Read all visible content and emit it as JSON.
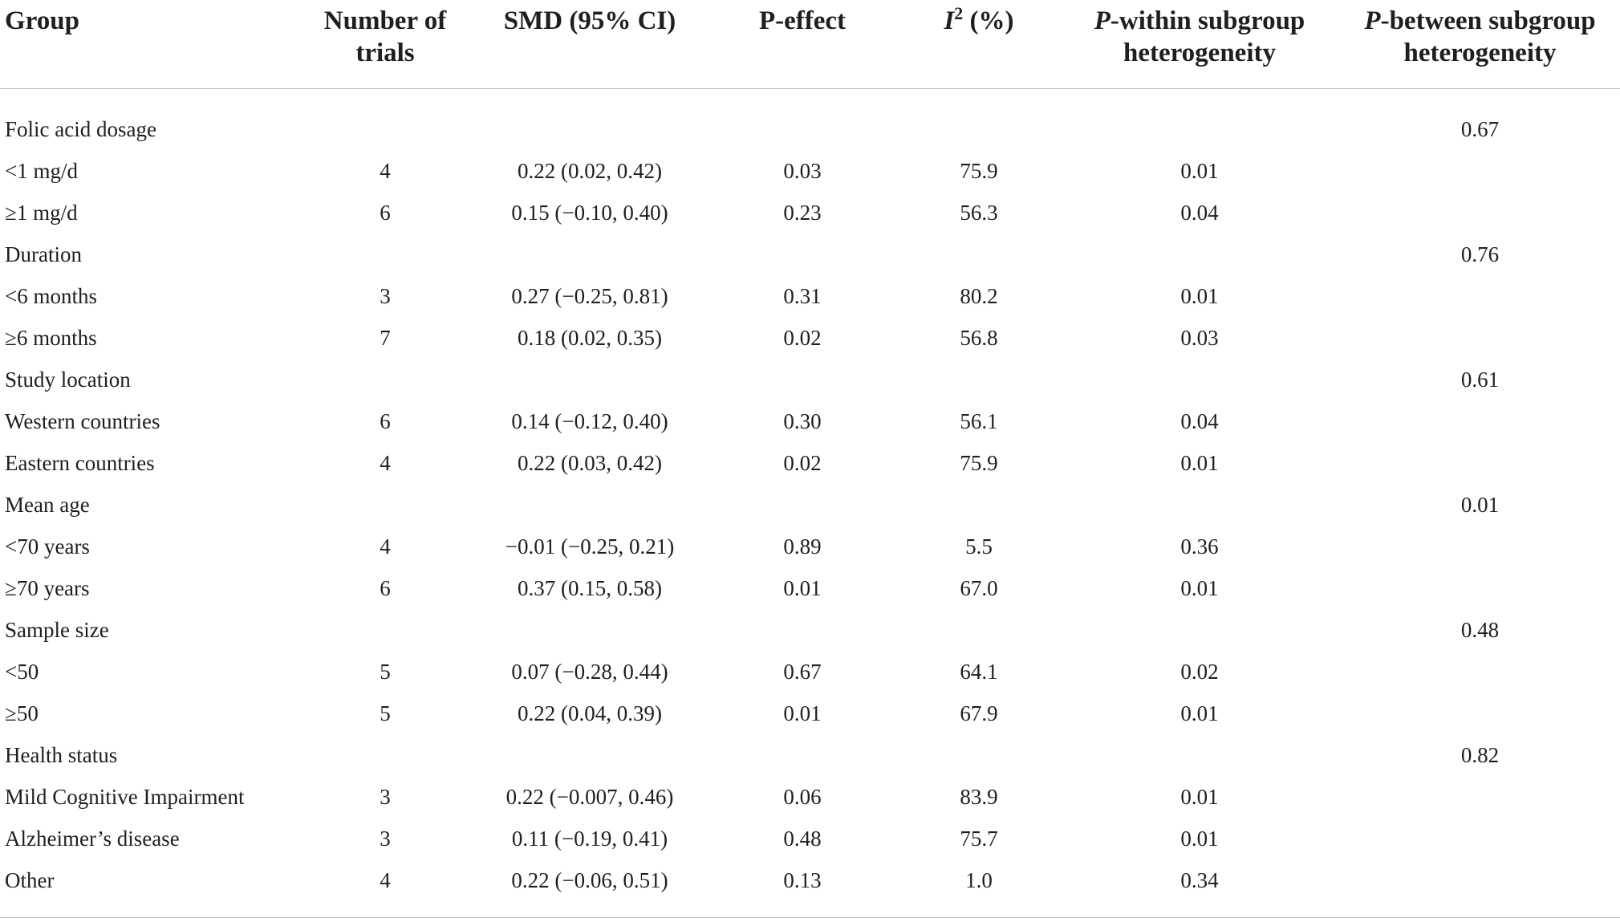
{
  "header": {
    "group": "Group",
    "trials_line1": "Number of",
    "trials_line2": "trials",
    "smd": "SMD (95% CI)",
    "p_effect": "P-effect",
    "i2_letter": "I",
    "i2_sup": "2",
    "i2_unit": " (%)",
    "p_within_p": "P",
    "p_within_line1": "-within subgroup",
    "p_within_line2": "heterogeneity",
    "p_between_p": "P",
    "p_between_line1": "-between subgroup",
    "p_between_line2": "heterogeneity"
  },
  "rows": [
    {
      "group": "Folic acid dosage",
      "trials": "",
      "smd": "",
      "p_effect": "",
      "i2": "",
      "p_within": "",
      "p_between": "0.67"
    },
    {
      "group": "<1 mg/d",
      "trials": "4",
      "smd": "0.22 (0.02, 0.42)",
      "p_effect": "0.03",
      "i2": "75.9",
      "p_within": "0.01",
      "p_between": ""
    },
    {
      "group": "≥1 mg/d",
      "trials": "6",
      "smd": "0.15 (−0.10, 0.40)",
      "p_effect": "0.23",
      "i2": "56.3",
      "p_within": "0.04",
      "p_between": ""
    },
    {
      "group": "Duration",
      "trials": "",
      "smd": "",
      "p_effect": "",
      "i2": "",
      "p_within": "",
      "p_between": "0.76"
    },
    {
      "group": "<6 months",
      "trials": "3",
      "smd": "0.27 (−0.25, 0.81)",
      "p_effect": "0.31",
      "i2": "80.2",
      "p_within": "0.01",
      "p_between": ""
    },
    {
      "group": "≥6 months",
      "trials": "7",
      "smd": "0.18 (0.02, 0.35)",
      "p_effect": "0.02",
      "i2": "56.8",
      "p_within": "0.03",
      "p_between": ""
    },
    {
      "group": "Study location",
      "trials": "",
      "smd": "",
      "p_effect": "",
      "i2": "",
      "p_within": "",
      "p_between": "0.61"
    },
    {
      "group": "Western countries",
      "trials": "6",
      "smd": "0.14 (−0.12, 0.40)",
      "p_effect": "0.30",
      "i2": "56.1",
      "p_within": "0.04",
      "p_between": ""
    },
    {
      "group": "Eastern countries",
      "trials": "4",
      "smd": "0.22 (0.03, 0.42)",
      "p_effect": "0.02",
      "i2": "75.9",
      "p_within": "0.01",
      "p_between": ""
    },
    {
      "group": "Mean age",
      "trials": "",
      "smd": "",
      "p_effect": "",
      "i2": "",
      "p_within": "",
      "p_between": "0.01"
    },
    {
      "group": "<70 years",
      "trials": "4",
      "smd": "−0.01 (−0.25, 0.21)",
      "p_effect": "0.89",
      "i2": "5.5",
      "p_within": "0.36",
      "p_between": ""
    },
    {
      "group": "≥70 years",
      "trials": "6",
      "smd": "0.37 (0.15, 0.58)",
      "p_effect": "0.01",
      "i2": "67.0",
      "p_within": "0.01",
      "p_between": ""
    },
    {
      "group": "Sample size",
      "trials": "",
      "smd": "",
      "p_effect": "",
      "i2": "",
      "p_within": "",
      "p_between": "0.48"
    },
    {
      "group": "<50",
      "trials": "5",
      "smd": "0.07 (−0.28, 0.44)",
      "p_effect": "0.67",
      "i2": "64.1",
      "p_within": "0.02",
      "p_between": ""
    },
    {
      "group": "≥50",
      "trials": "5",
      "smd": "0.22 (0.04, 0.39)",
      "p_effect": "0.01",
      "i2": "67.9",
      "p_within": "0.01",
      "p_between": ""
    },
    {
      "group": "Health status",
      "trials": "",
      "smd": "",
      "p_effect": "",
      "i2": "",
      "p_within": "",
      "p_between": "0.82"
    },
    {
      "group": "Mild Cognitive Impairment",
      "trials": "3",
      "smd": "0.22 (−0.007, 0.46)",
      "p_effect": "0.06",
      "i2": "83.9",
      "p_within": "0.01",
      "p_between": ""
    },
    {
      "group": "Alzheimer’s disease",
      "trials": "3",
      "smd": "0.11 (−0.19, 0.41)",
      "p_effect": "0.48",
      "i2": "75.7",
      "p_within": "0.01",
      "p_between": ""
    },
    {
      "group": "Other",
      "trials": "4",
      "smd": "0.22 (−0.06, 0.51)",
      "p_effect": "0.13",
      "i2": "1.0",
      "p_within": "0.34",
      "p_between": ""
    }
  ]
}
